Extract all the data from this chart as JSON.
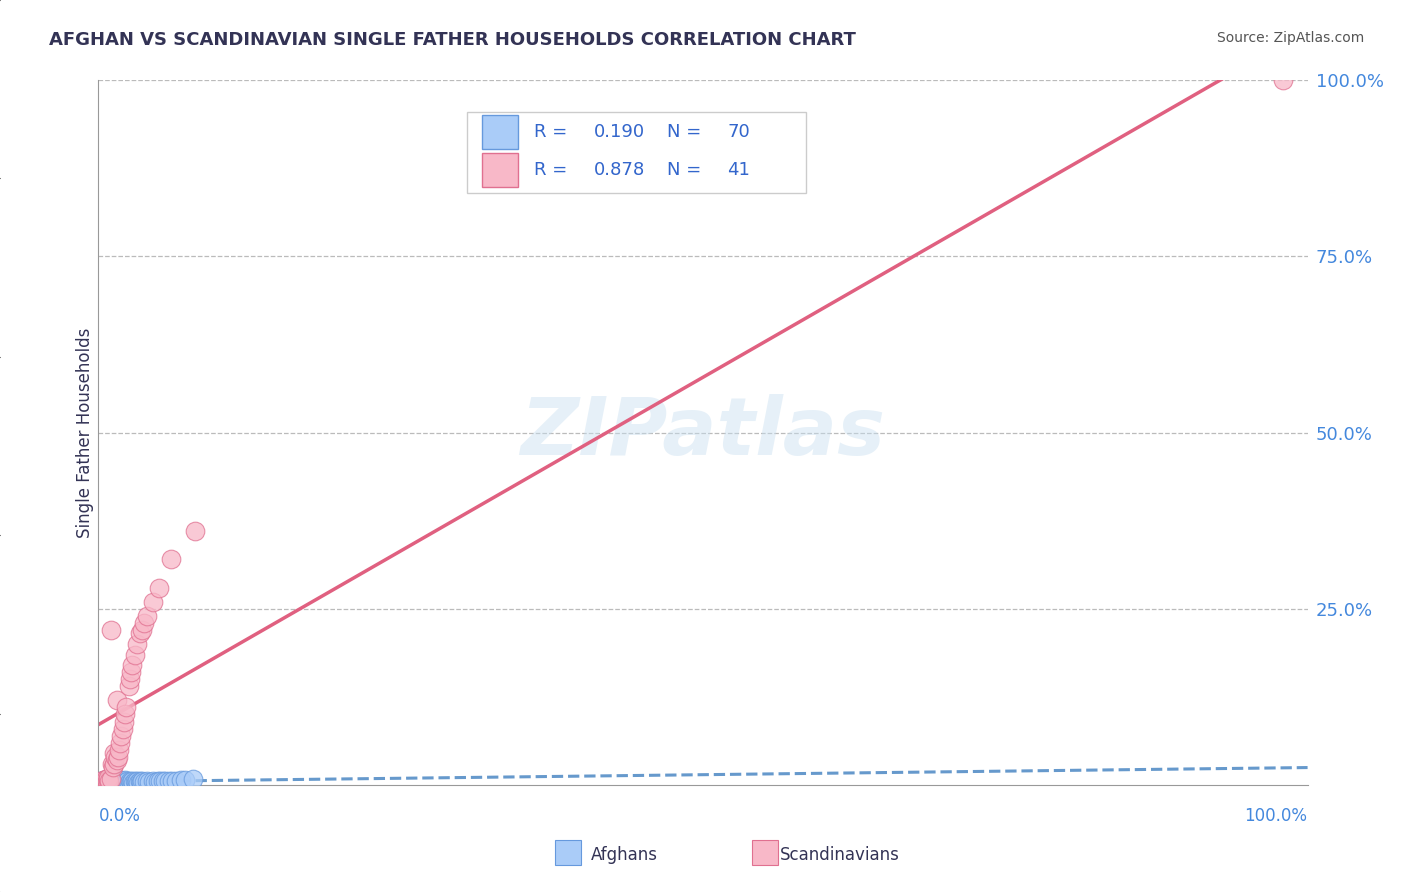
{
  "title": "AFGHAN VS SCANDINAVIAN SINGLE FATHER HOUSEHOLDS CORRELATION CHART",
  "source": "Source: ZipAtlas.com",
  "ylabel": "Single Father Households",
  "watermark": "ZIPatlas",
  "afghans_R": 0.19,
  "afghans_N": 70,
  "scandinavians_R": 0.878,
  "scandinavians_N": 41,
  "afghans_color": "#aaccf8",
  "afghans_edge_color": "#6699dd",
  "scandinavians_color": "#f8b8c8",
  "scandinavians_edge_color": "#e07090",
  "afghans_line_color": "#6699cc",
  "scandinavians_line_color": "#e06080",
  "legend_text_color": "#3366cc",
  "grid_color": "#bbbbbb",
  "background_color": "#ffffff",
  "afghans_x": [
    0.001,
    0.002,
    0.002,
    0.003,
    0.003,
    0.004,
    0.004,
    0.005,
    0.005,
    0.005,
    0.006,
    0.006,
    0.007,
    0.007,
    0.007,
    0.008,
    0.008,
    0.009,
    0.009,
    0.01,
    0.01,
    0.011,
    0.011,
    0.012,
    0.012,
    0.013,
    0.013,
    0.014,
    0.015,
    0.015,
    0.016,
    0.016,
    0.017,
    0.018,
    0.018,
    0.019,
    0.02,
    0.02,
    0.021,
    0.022,
    0.022,
    0.023,
    0.024,
    0.025,
    0.026,
    0.027,
    0.028,
    0.029,
    0.03,
    0.031,
    0.032,
    0.033,
    0.034,
    0.035,
    0.036,
    0.038,
    0.04,
    0.042,
    0.045,
    0.047,
    0.049,
    0.051,
    0.053,
    0.055,
    0.058,
    0.061,
    0.064,
    0.068,
    0.072,
    0.078
  ],
  "afghans_y": [
    0.003,
    0.004,
    0.006,
    0.003,
    0.005,
    0.004,
    0.006,
    0.003,
    0.005,
    0.007,
    0.004,
    0.006,
    0.003,
    0.005,
    0.007,
    0.004,
    0.006,
    0.003,
    0.006,
    0.004,
    0.007,
    0.003,
    0.006,
    0.004,
    0.007,
    0.003,
    0.006,
    0.005,
    0.003,
    0.007,
    0.004,
    0.006,
    0.005,
    0.003,
    0.007,
    0.004,
    0.003,
    0.006,
    0.005,
    0.003,
    0.007,
    0.004,
    0.006,
    0.003,
    0.005,
    0.004,
    0.006,
    0.003,
    0.005,
    0.004,
    0.006,
    0.003,
    0.005,
    0.004,
    0.006,
    0.004,
    0.005,
    0.004,
    0.005,
    0.004,
    0.005,
    0.005,
    0.006,
    0.005,
    0.006,
    0.006,
    0.006,
    0.007,
    0.007,
    0.008
  ],
  "scandinavians_x": [
    0.003,
    0.004,
    0.005,
    0.006,
    0.006,
    0.007,
    0.008,
    0.008,
    0.009,
    0.01,
    0.01,
    0.011,
    0.012,
    0.013,
    0.013,
    0.014,
    0.015,
    0.015,
    0.016,
    0.017,
    0.018,
    0.019,
    0.02,
    0.021,
    0.022,
    0.023,
    0.025,
    0.026,
    0.027,
    0.028,
    0.03,
    0.032,
    0.034,
    0.036,
    0.038,
    0.04,
    0.045,
    0.05,
    0.06,
    0.08,
    0.98
  ],
  "scandinavians_y": [
    0.005,
    0.007,
    0.004,
    0.006,
    0.008,
    0.005,
    0.007,
    0.01,
    0.006,
    0.008,
    0.22,
    0.03,
    0.025,
    0.03,
    0.045,
    0.04,
    0.12,
    0.035,
    0.04,
    0.05,
    0.06,
    0.07,
    0.08,
    0.09,
    0.1,
    0.11,
    0.14,
    0.15,
    0.16,
    0.17,
    0.185,
    0.2,
    0.215,
    0.22,
    0.23,
    0.24,
    0.26,
    0.28,
    0.32,
    0.36,
    1.0
  ],
  "ytick_positions": [
    0.25,
    0.5,
    0.75,
    1.0
  ],
  "ytick_labels": [
    "25.0%",
    "50.0%",
    "75.0%",
    "100.0%"
  ]
}
